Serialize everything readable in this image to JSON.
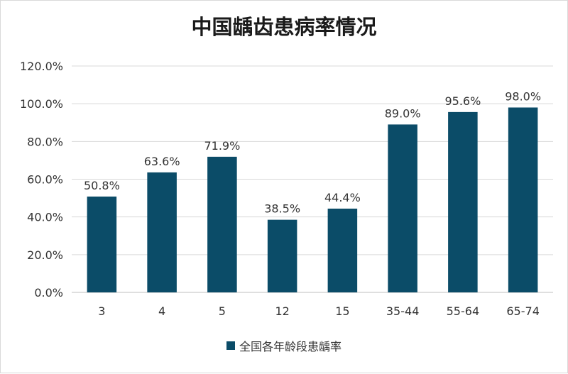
{
  "chart_data": {
    "type": "bar",
    "title": "中国龋齿患病率情况",
    "categories": [
      "3",
      "4",
      "5",
      "12",
      "15",
      "35-44",
      "55-64",
      "65-74"
    ],
    "series": [
      {
        "name": "全国各年龄段患龋率",
        "values": [
          50.8,
          63.6,
          71.9,
          38.5,
          44.4,
          89.0,
          95.6,
          98.0
        ],
        "data_labels": [
          "50.8%",
          "63.6%",
          "71.9%",
          "38.5%",
          "44.4%",
          "89.0%",
          "95.6%",
          "98.0%"
        ]
      }
    ],
    "ylim": [
      0,
      120
    ],
    "yticks": [
      0,
      20,
      40,
      60,
      80,
      100,
      120
    ],
    "ytick_labels": [
      "0.0%",
      "20.0%",
      "40.0%",
      "60.0%",
      "80.0%",
      "100.0%",
      "120.0%"
    ],
    "xlabel": "",
    "ylabel": "",
    "grid": true,
    "legend_position": "bottom",
    "bar_color": "#0b4c68"
  }
}
